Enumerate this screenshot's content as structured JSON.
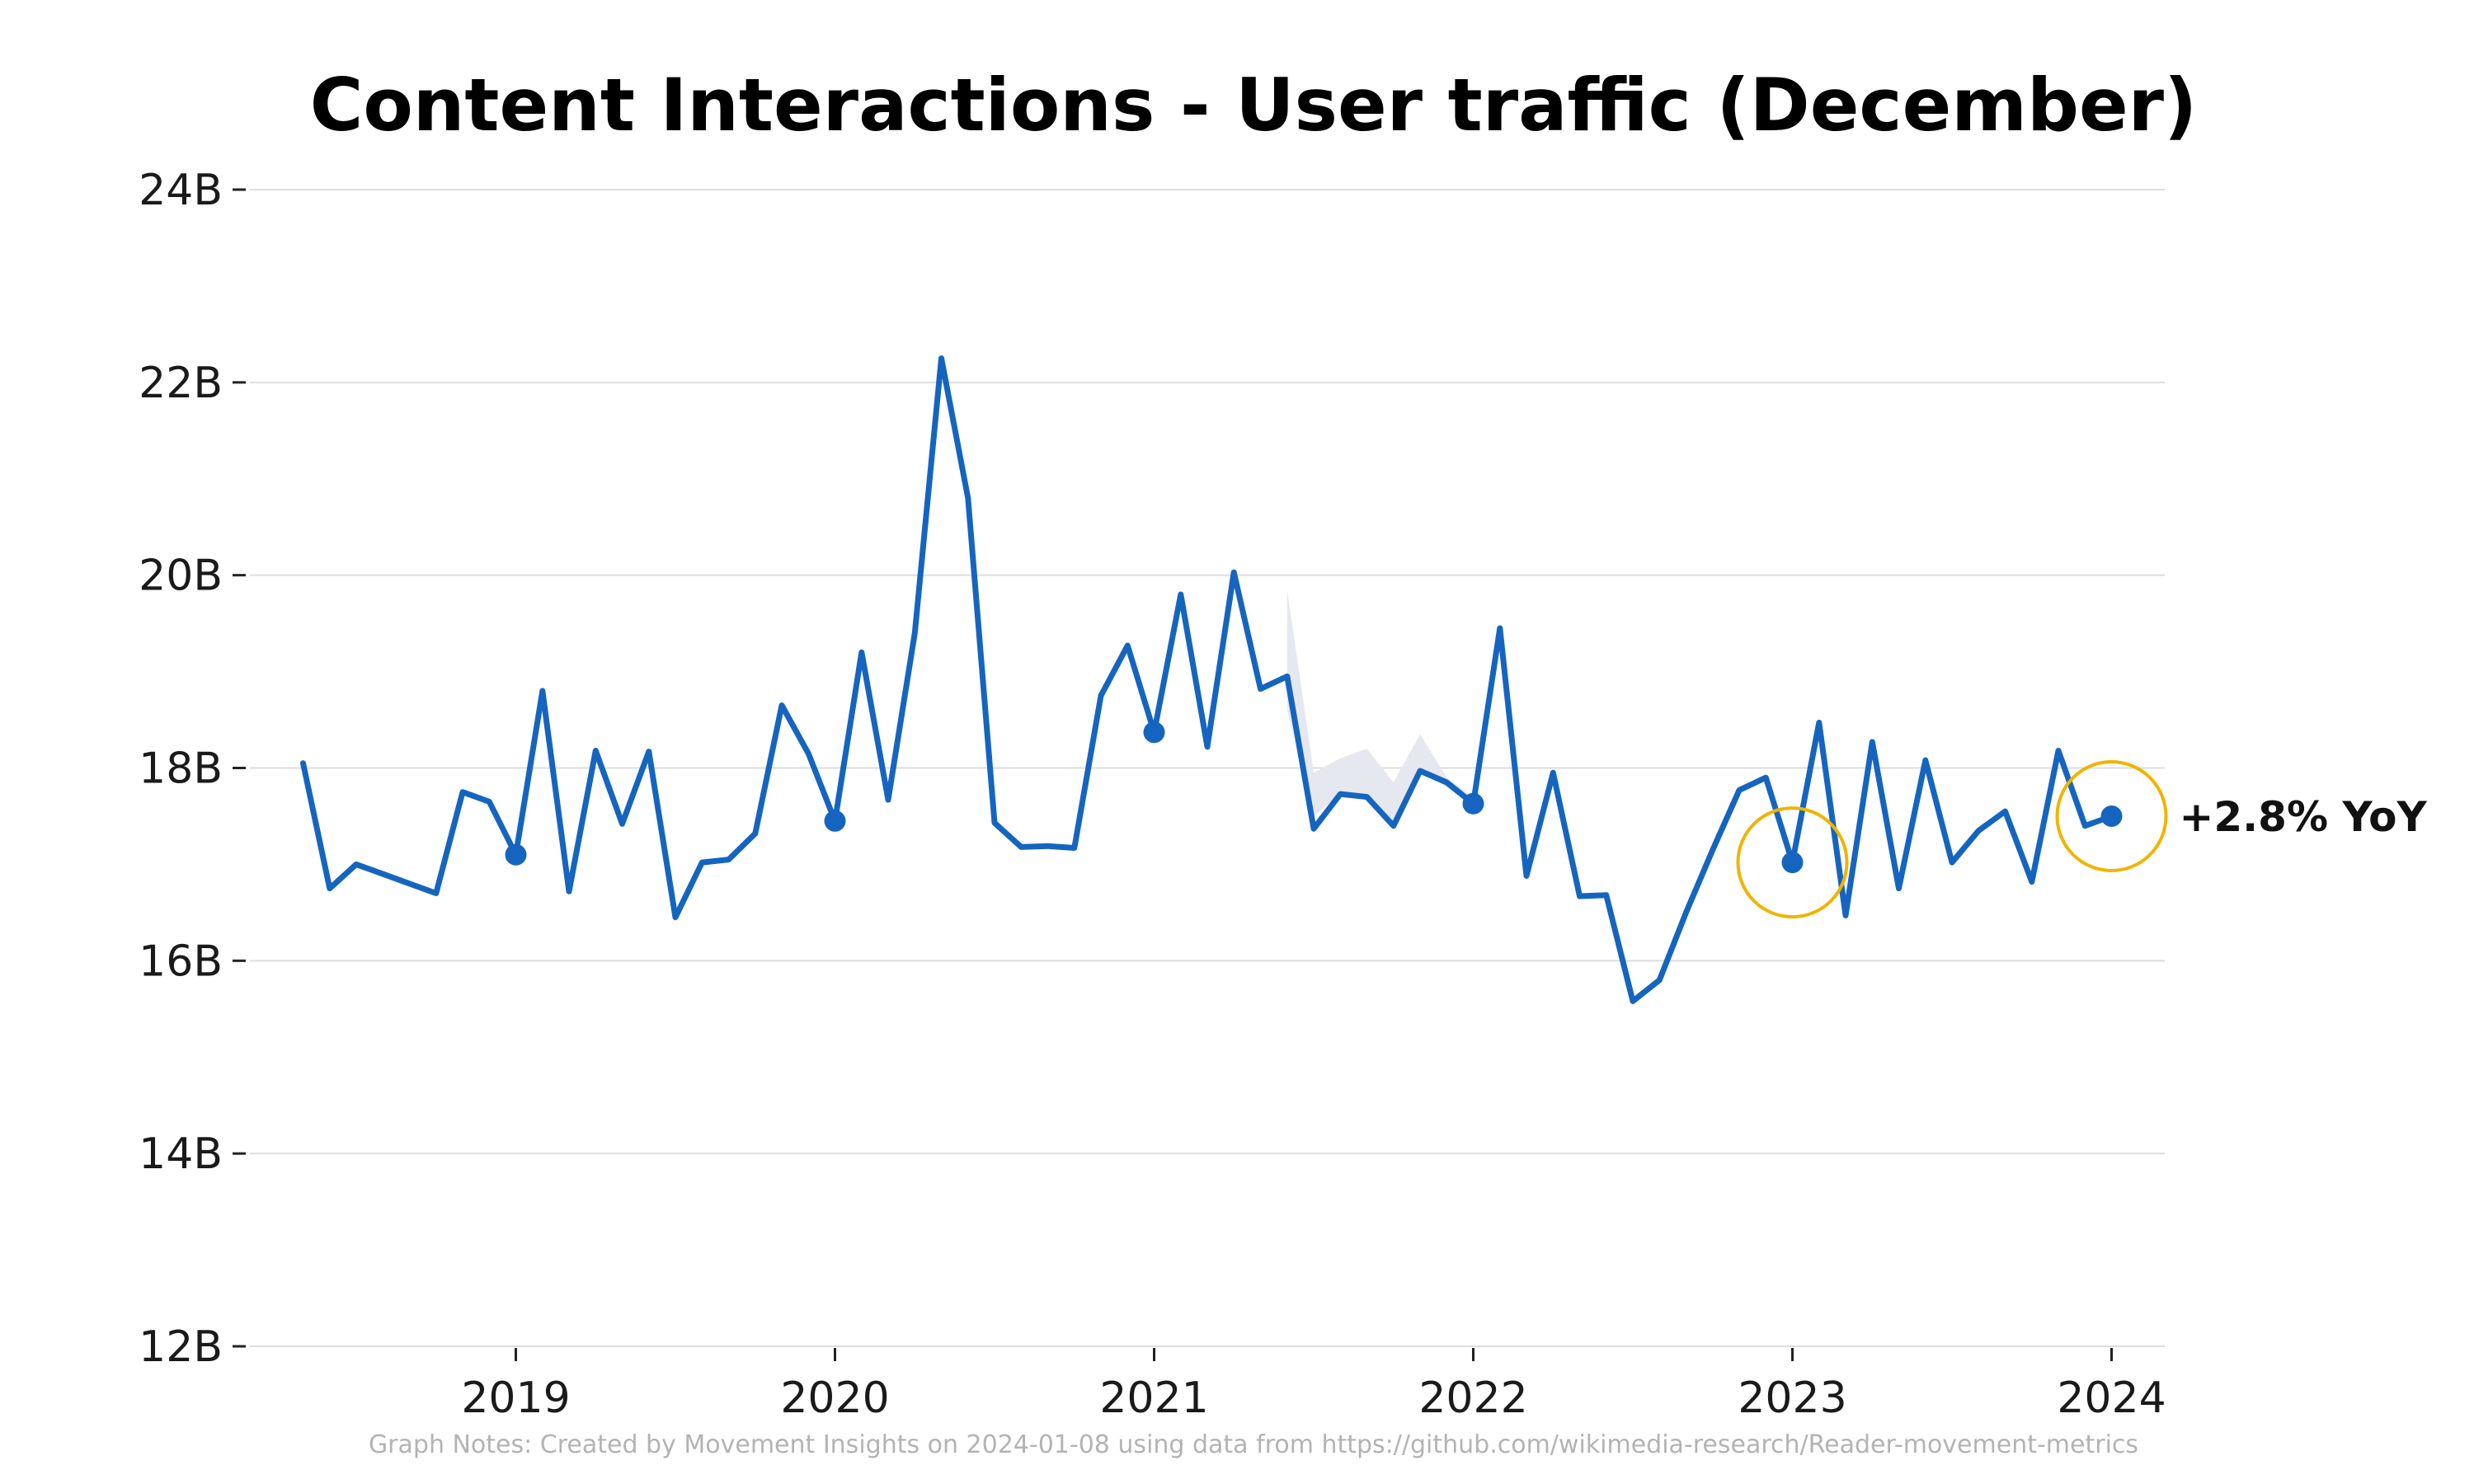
{
  "chart_data": {
    "type": "line",
    "title": "Content Interactions - User traffic (December)",
    "xlabel": "",
    "ylabel": "",
    "x_tick_labels": [
      "2019",
      "2020",
      "2021",
      "2022",
      "2023",
      "2024"
    ],
    "y_tick_labels": [
      "12B",
      "14B",
      "16B",
      "18B",
      "20B",
      "22B",
      "24B"
    ],
    "y_ticks": [
      12,
      14,
      16,
      18,
      20,
      22,
      24
    ],
    "ylim": [
      12,
      24
    ],
    "xlim": [
      "2018-03",
      "2024-03"
    ],
    "y_unit": "B",
    "grid": true,
    "colors": {
      "line": "#1565c0",
      "band": "#e6e8ef",
      "highlight_circle": "#f0b400",
      "grid": "#dddddd"
    },
    "series": [
      {
        "points": [
          [
            "2018-05",
            18.05
          ],
          [
            "2018-06",
            16.75
          ],
          [
            "2018-07",
            17.0
          ],
          [
            "2018-08",
            16.9
          ],
          [
            "2018-09",
            16.8
          ],
          [
            "2018-10",
            16.7
          ],
          [
            "2018-11",
            17.75
          ],
          [
            "2018-12",
            17.65
          ],
          [
            "2019-01",
            17.1
          ],
          [
            "2019-02",
            18.8
          ],
          [
            "2019-03",
            16.72
          ],
          [
            "2019-04",
            18.18
          ],
          [
            "2019-05",
            17.42
          ],
          [
            "2019-06",
            18.17
          ],
          [
            "2019-07",
            16.45
          ],
          [
            "2019-08",
            17.02
          ],
          [
            "2019-09",
            17.05
          ],
          [
            "2019-10",
            17.32
          ],
          [
            "2019-11",
            18.65
          ],
          [
            "2019-12",
            18.15
          ],
          [
            "2020-01",
            17.45
          ],
          [
            "2020-02",
            19.2
          ],
          [
            "2020-03",
            17.67
          ],
          [
            "2020-04",
            19.4
          ],
          [
            "2020-05",
            22.25
          ],
          [
            "2020-06",
            20.8
          ],
          [
            "2020-07",
            17.43
          ],
          [
            "2020-08",
            17.18
          ],
          [
            "2020-09",
            17.19
          ],
          [
            "2020-10",
            17.17
          ],
          [
            "2020-11",
            18.75
          ],
          [
            "2020-12",
            19.27
          ],
          [
            "2021-01",
            18.37
          ],
          [
            "2021-02",
            19.8
          ],
          [
            "2021-03",
            18.22
          ],
          [
            "2021-04",
            20.03
          ],
          [
            "2021-05",
            18.82
          ],
          [
            "2021-06",
            18.95
          ],
          [
            "2021-07",
            17.37
          ],
          [
            "2021-08",
            17.73
          ],
          [
            "2021-09",
            17.7
          ],
          [
            "2021-10",
            17.4
          ],
          [
            "2021-11",
            17.97
          ],
          [
            "2021-12",
            17.85
          ],
          [
            "2022-01",
            17.63
          ],
          [
            "2022-02",
            19.45
          ],
          [
            "2022-03",
            16.88
          ],
          [
            "2022-04",
            17.95
          ],
          [
            "2022-05",
            16.67
          ],
          [
            "2022-06",
            16.68
          ],
          [
            "2022-07",
            15.58
          ],
          [
            "2022-08",
            15.8
          ],
          [
            "2022-09",
            16.5
          ],
          [
            "2022-10",
            17.15
          ],
          [
            "2022-11",
            17.77
          ],
          [
            "2022-12",
            17.9
          ],
          [
            "2023-01",
            17.02
          ],
          [
            "2023-02",
            18.47
          ],
          [
            "2023-03",
            16.47
          ],
          [
            "2023-04",
            18.27
          ],
          [
            "2023-05",
            16.75
          ],
          [
            "2023-06",
            18.08
          ],
          [
            "2023-07",
            17.02
          ],
          [
            "2023-08",
            17.35
          ],
          [
            "2023-09",
            17.55
          ],
          [
            "2023-10",
            16.82
          ],
          [
            "2023-11",
            18.18
          ],
          [
            "2023-12",
            17.4
          ],
          [
            "2024-01",
            17.5
          ]
        ]
      }
    ],
    "band": {
      "points": [
        [
          "2021-06",
          19.85,
          18.6
        ],
        [
          "2021-07",
          17.95,
          17.5
        ],
        [
          "2021-08",
          18.1,
          17.73
        ],
        [
          "2021-09",
          18.2,
          17.7
        ],
        [
          "2021-10",
          17.85,
          17.45
        ],
        [
          "2021-11",
          18.35,
          17.97
        ],
        [
          "2021-12",
          17.9,
          17.8
        ],
        [
          "2022-01",
          17.7,
          17.6
        ]
      ]
    },
    "december_points": [
      [
        "2019-01",
        17.1
      ],
      [
        "2020-01",
        17.45
      ],
      [
        "2021-01",
        18.37
      ],
      [
        "2022-01",
        17.63
      ],
      [
        "2023-01",
        17.02
      ],
      [
        "2024-01",
        17.5
      ]
    ],
    "highlight_points": [
      [
        "2023-01",
        17.02
      ],
      [
        "2024-01",
        17.5
      ]
    ],
    "annotation": {
      "text": "+2.8% YoY",
      "at": [
        "2024-01",
        17.5
      ]
    },
    "note": "Graph Notes: Created by Movement Insights  on 2024-01-08 using data from https://github.com/wikimedia-research/Reader-movement-metrics"
  }
}
